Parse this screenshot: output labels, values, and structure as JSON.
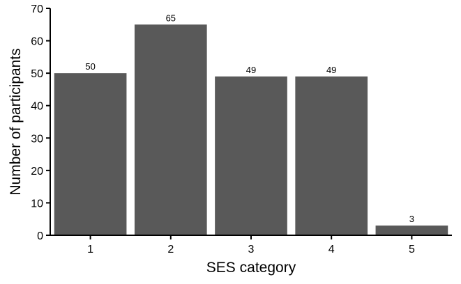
{
  "chart_data": {
    "type": "bar",
    "categories": [
      "1",
      "2",
      "3",
      "4",
      "5"
    ],
    "values": [
      50,
      65,
      49,
      49,
      3
    ],
    "data_labels": [
      "50",
      "65",
      "49",
      "49",
      "3"
    ],
    "xlabel": "SES category",
    "ylabel": "Number of participants",
    "ylim": [
      0,
      70
    ],
    "yticks": [
      "0",
      "10",
      "20",
      "30",
      "40",
      "50",
      "60",
      "70"
    ],
    "grid": false,
    "bar_color": "#595959"
  }
}
